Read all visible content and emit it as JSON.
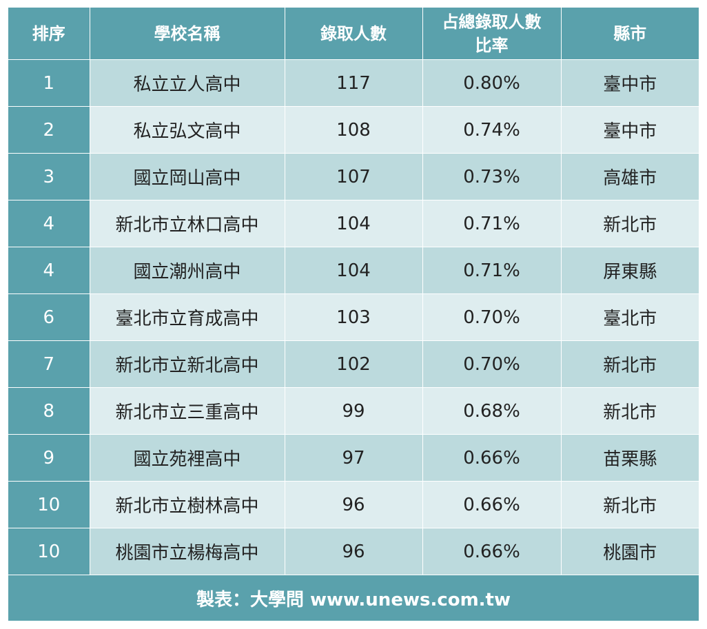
{
  "table": {
    "headers": {
      "rank": "排序",
      "school": "學校名稱",
      "admitted": "錄取人數",
      "ratio_line1": "占總錄取人數",
      "ratio_line2": "比率",
      "county": "縣市"
    },
    "rows": [
      {
        "rank": "1",
        "school": "私立立人高中",
        "admitted": "117",
        "ratio": "0.80%",
        "county": "臺中市"
      },
      {
        "rank": "2",
        "school": "私立弘文高中",
        "admitted": "108",
        "ratio": "0.74%",
        "county": "臺中市"
      },
      {
        "rank": "3",
        "school": "國立岡山高中",
        "admitted": "107",
        "ratio": "0.73%",
        "county": "高雄市"
      },
      {
        "rank": "4",
        "school": "新北市立林口高中",
        "admitted": "104",
        "ratio": "0.71%",
        "county": "新北市"
      },
      {
        "rank": "4",
        "school": "國立潮州高中",
        "admitted": "104",
        "ratio": "0.71%",
        "county": "屏東縣"
      },
      {
        "rank": "6",
        "school": "臺北市立育成高中",
        "admitted": "103",
        "ratio": "0.70%",
        "county": "臺北市"
      },
      {
        "rank": "7",
        "school": "新北市立新北高中",
        "admitted": "102",
        "ratio": "0.70%",
        "county": "新北市"
      },
      {
        "rank": "8",
        "school": "新北市立三重高中",
        "admitted": "99",
        "ratio": "0.68%",
        "county": "新北市"
      },
      {
        "rank": "9",
        "school": "國立苑裡高中",
        "admitted": "97",
        "ratio": "0.66%",
        "county": "苗栗縣"
      },
      {
        "rank": "10",
        "school": "新北市立樹林高中",
        "admitted": "96",
        "ratio": "0.66%",
        "county": "新北市"
      },
      {
        "rank": "10",
        "school": "桃園市立楊梅高中",
        "admitted": "96",
        "ratio": "0.66%",
        "county": "桃園市"
      }
    ]
  },
  "footer": {
    "credit": "製表：大學問 www.unews.com.tw"
  },
  "colors": {
    "header_bg": "#5aa1ac",
    "row_dark": "#bcdadd",
    "row_light": "#deedef",
    "text": "#222222"
  }
}
